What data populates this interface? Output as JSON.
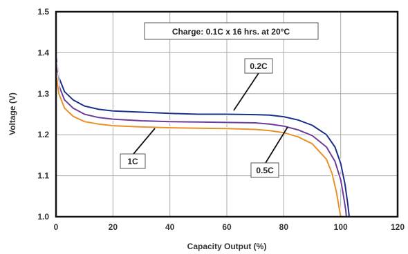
{
  "chart_data": {
    "type": "line",
    "xlabel": "Capacity Output (%)",
    "ylabel": "Voltage (V)",
    "xlim": [
      0,
      120
    ],
    "ylim": [
      1.0,
      1.5
    ],
    "xticks": [
      "0",
      "20",
      "40",
      "60",
      "80",
      "100",
      "120"
    ],
    "yticks": [
      "1.0",
      "1.1",
      "1.2",
      "1.3",
      "1.4",
      "1.5"
    ],
    "grid": true,
    "annotation": "Charge: 0.1C x 16 hrs. at 20°C",
    "series": [
      {
        "name": "0.2C",
        "color": "#1a2f8a",
        "x": [
          0,
          1,
          3,
          6,
          10,
          15,
          20,
          30,
          40,
          50,
          60,
          70,
          75,
          80,
          85,
          90,
          95,
          98,
          100,
          101.5,
          102.5,
          103
        ],
        "y": [
          1.39,
          1.34,
          1.305,
          1.285,
          1.27,
          1.262,
          1.258,
          1.255,
          1.252,
          1.25,
          1.25,
          1.249,
          1.248,
          1.244,
          1.236,
          1.223,
          1.2,
          1.17,
          1.13,
          1.08,
          1.03,
          1.0
        ]
      },
      {
        "name": "0.5C",
        "color": "#6a3d9a",
        "x": [
          0,
          1,
          3,
          6,
          10,
          15,
          20,
          30,
          40,
          50,
          60,
          70,
          75,
          80,
          85,
          90,
          95,
          98,
          100,
          101,
          101.8,
          102
        ],
        "y": [
          1.375,
          1.32,
          1.285,
          1.265,
          1.25,
          1.242,
          1.238,
          1.234,
          1.232,
          1.231,
          1.23,
          1.229,
          1.226,
          1.221,
          1.212,
          1.198,
          1.17,
          1.135,
          1.09,
          1.05,
          1.015,
          1.0
        ]
      },
      {
        "name": "1C",
        "color": "#e8912a",
        "x": [
          0,
          1,
          3,
          6,
          10,
          15,
          20,
          30,
          40,
          50,
          60,
          70,
          75,
          80,
          85,
          90,
          95,
          97,
          98.5,
          99.5,
          100
        ],
        "y": [
          1.35,
          1.3,
          1.265,
          1.245,
          1.232,
          1.226,
          1.222,
          1.219,
          1.217,
          1.216,
          1.215,
          1.213,
          1.21,
          1.205,
          1.195,
          1.178,
          1.14,
          1.105,
          1.06,
          1.02,
          1.0
        ]
      }
    ]
  }
}
